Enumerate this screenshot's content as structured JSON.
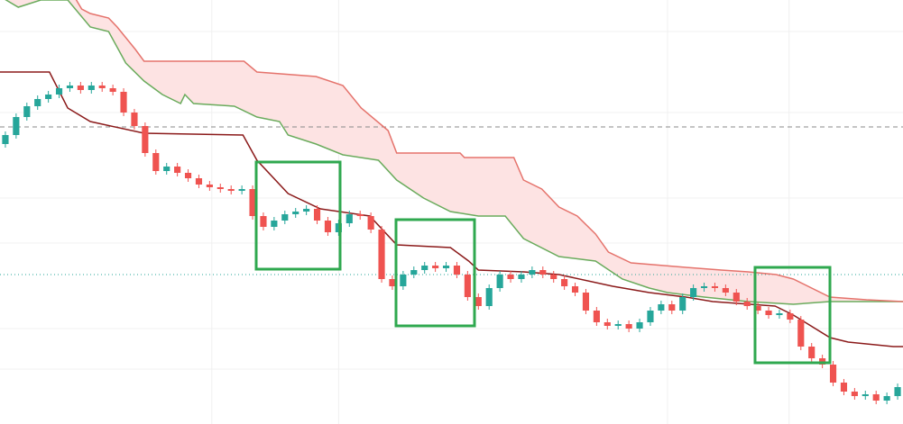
{
  "chart_data": {
    "type": "candlestick",
    "xlim": [
      -0.5,
      83.5
    ],
    "ylim": [
      0,
      471
    ],
    "xticks": [
      19.2,
      31,
      61.6,
      72.9
    ],
    "yticks": [
      436,
      346,
      251,
      201,
      106,
      61
    ],
    "grid": true,
    "up_color": "#26a69a",
    "down_color": "#ef5350",
    "open": [
      311,
      321,
      341,
      353,
      361,
      366,
      373,
      376,
      371,
      376,
      373,
      369,
      346,
      331,
      301,
      281,
      286,
      279,
      273,
      266,
      263,
      261,
      259,
      261,
      231,
      219,
      226,
      233,
      236,
      239,
      226,
      213,
      223,
      233,
      231,
      216,
      161,
      153,
      166,
      171,
      176,
      173,
      176,
      166,
      141,
      131,
      151,
      166,
      161,
      166,
      171,
      166,
      161,
      153,
      146,
      126,
      113,
      109,
      111,
      106,
      113,
      126,
      133,
      126,
      141,
      151,
      153,
      151,
      146,
      136,
      131,
      126,
      121,
      123,
      116,
      86,
      73,
      66,
      46,
      36,
      31,
      33,
      26,
      31
    ],
    "high": [
      325,
      345,
      357,
      365,
      370,
      377,
      380,
      380,
      380,
      380,
      377,
      373,
      350,
      335,
      305,
      290,
      290,
      283,
      277,
      270,
      267,
      265,
      265,
      265,
      235,
      230,
      237,
      240,
      243,
      243,
      230,
      227,
      237,
      237,
      235,
      220,
      165,
      170,
      175,
      180,
      180,
      180,
      180,
      170,
      145,
      155,
      170,
      170,
      170,
      175,
      175,
      170,
      165,
      157,
      150,
      130,
      117,
      115,
      115,
      117,
      130,
      137,
      137,
      145,
      155,
      157,
      157,
      155,
      150,
      140,
      135,
      130,
      127,
      127,
      120,
      90,
      77,
      70,
      50,
      40,
      37,
      37,
      35,
      45
    ],
    "low": [
      307,
      317,
      337,
      349,
      357,
      362,
      369,
      367,
      367,
      369,
      365,
      342,
      327,
      297,
      277,
      277,
      275,
      269,
      262,
      259,
      257,
      255,
      255,
      227,
      215,
      215,
      222,
      229,
      232,
      222,
      209,
      209,
      219,
      227,
      212,
      157,
      149,
      149,
      162,
      167,
      169,
      169,
      162,
      137,
      127,
      127,
      147,
      157,
      157,
      162,
      162,
      157,
      149,
      142,
      122,
      109,
      105,
      105,
      102,
      102,
      109,
      122,
      122,
      122,
      137,
      147,
      147,
      142,
      132,
      127,
      122,
      117,
      117,
      112,
      82,
      69,
      62,
      42,
      32,
      27,
      27,
      22,
      22,
      27
    ],
    "close": [
      321,
      341,
      353,
      361,
      366,
      373,
      376,
      371,
      376,
      373,
      369,
      346,
      331,
      301,
      281,
      286,
      279,
      273,
      266,
      263,
      261,
      259,
      261,
      231,
      219,
      226,
      233,
      236,
      239,
      226,
      213,
      223,
      233,
      231,
      216,
      161,
      153,
      166,
      171,
      176,
      173,
      176,
      166,
      141,
      131,
      151,
      166,
      161,
      166,
      171,
      166,
      161,
      153,
      146,
      126,
      113,
      109,
      111,
      106,
      113,
      126,
      133,
      126,
      141,
      151,
      153,
      151,
      146,
      136,
      131,
      126,
      121,
      123,
      116,
      86,
      73,
      66,
      46,
      36,
      31,
      33,
      26,
      31,
      41
    ],
    "cloud_color": "#fde3e3",
    "series": [
      {
        "type": "line",
        "color": "#6aab5c",
        "x": [
          -0.5,
          1.2,
          3.3,
          5.8,
          7.9,
          9.6,
          11.2,
          12.9,
          14.6,
          16.3,
          16.7,
          17.5,
          21.3,
          23.4,
          25.5,
          26.3,
          28.9,
          31.4,
          34.7,
          36.4,
          38.9,
          41.4,
          44,
          46.5,
          48.2,
          51.5,
          54.9,
          57.4,
          59.9,
          61.6,
          65,
          69.1,
          73.3,
          76.7,
          80.1,
          83.5
        ],
        "values": [
          475,
          463,
          471,
          471,
          441,
          436,
          401,
          381,
          366,
          356,
          366,
          356,
          353,
          341,
          336,
          321,
          311,
          299,
          293,
          271,
          251,
          236,
          231,
          231,
          206,
          186,
          181,
          161,
          151,
          146,
          141,
          136,
          133,
          136,
          136,
          136
        ]
      },
      {
        "type": "line",
        "color": "#e5736c",
        "x": [
          6.2,
          6.6,
          7.1,
          7.9,
          9.6,
          10.4,
          12.1,
          12.9,
          22.2,
          23.4,
          28.9,
          31.4,
          33.1,
          35.6,
          36.4,
          42.3,
          42.7,
          47.3,
          48.2,
          49.9,
          51.5,
          53.2,
          54.9,
          56.1,
          58.2,
          63.3,
          66.6,
          69.1,
          71.7,
          73.3,
          76.7,
          80.1,
          83.5
        ],
        "values": [
          491,
          471,
          461,
          456,
          451,
          441,
          416,
          403,
          403,
          391,
          386,
          376,
          351,
          326,
          301,
          301,
          296,
          296,
          271,
          261,
          241,
          231,
          211,
          191,
          179,
          174,
          171,
          169,
          166,
          161,
          141,
          138,
          136
        ]
      },
      {
        "type": "line",
        "color": "#8b1a1a",
        "x": [
          -0.5,
          4.1,
          5.8,
          7.9,
          12.9,
          22.1,
          23.4,
          26.3,
          29.3,
          33.9,
          36.4,
          41.4,
          43.1,
          44,
          48.2,
          51.5,
          56.5,
          59.9,
          63.3,
          65.8,
          71.6,
          73.3,
          76.7,
          78.4,
          82.6,
          83.5
        ],
        "values": [
          391,
          391,
          351,
          336,
          323,
          321,
          293,
          256,
          239,
          231,
          199,
          196,
          181,
          171,
          169,
          166,
          153,
          146,
          141,
          136,
          131,
          121,
          96,
          91,
          86,
          86
        ]
      }
    ],
    "reference_lines": [
      {
        "value": 330,
        "color": "#888888",
        "style": "dashed"
      },
      {
        "value": 166,
        "color": "#26a69a",
        "style": "dotted"
      }
    ]
  }
}
